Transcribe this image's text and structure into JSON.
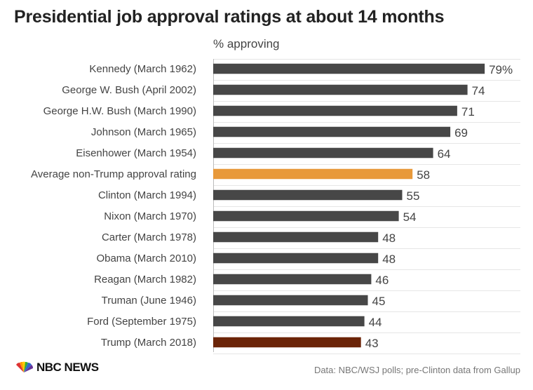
{
  "title": "Presidential job approval ratings at about 14 months",
  "subtitle": "% approving",
  "source": "Data: NBC/WSJ polls; pre-Clinton data from Gallup",
  "logo_text": "NBC NEWS",
  "colors": {
    "default": "#474747",
    "average": "#e8993a",
    "highlight": "#6b2408",
    "grid": "#e6e6e6",
    "axis": "#bbbbbb"
  },
  "chart_data": {
    "type": "bar",
    "orientation": "horizontal",
    "title": "Presidential job approval ratings at about 14 months",
    "xlabel": "% approving",
    "xlim": [
      0,
      100
    ],
    "grid": true,
    "categories": [
      "Kennedy (March 1962)",
      "George W. Bush (April 2002)",
      "George H.W. Bush (March 1990)",
      "Johnson (March 1965)",
      "Eisenhower (March 1954)",
      "Average non-Trump approval rating",
      "Clinton (March 1994)",
      "Nixon (March 1970)",
      "Carter (March 1978)",
      "Obama (March 2010)",
      "Reagan (March 1982)",
      "Truman (June 1946)",
      "Ford (September 1975)",
      "Trump (March 2018)"
    ],
    "values": [
      79,
      74,
      71,
      69,
      64,
      58,
      55,
      54,
      48,
      48,
      46,
      45,
      44,
      43
    ],
    "value_labels": [
      "79%",
      "74",
      "71",
      "69",
      "64",
      "58",
      "55",
      "54",
      "48",
      "48",
      "46",
      "45",
      "44",
      "43"
    ],
    "bar_colors": [
      "default",
      "default",
      "default",
      "default",
      "default",
      "average",
      "default",
      "default",
      "default",
      "default",
      "default",
      "default",
      "default",
      "highlight"
    ]
  }
}
